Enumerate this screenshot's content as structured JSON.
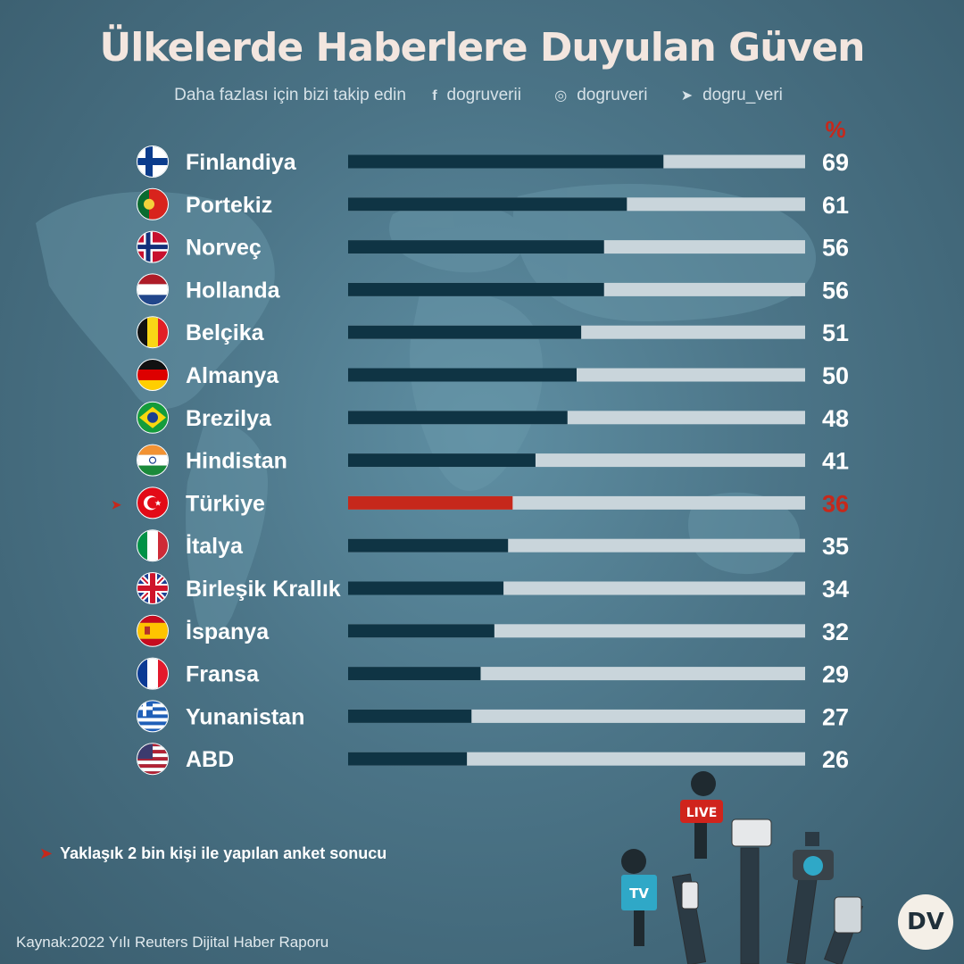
{
  "header": {
    "title": "Ülkelerde Haberlere Duyulan Güven",
    "follow_text": "Daha fazlası için bizi takip edin",
    "social": [
      {
        "icon": "facebook-icon",
        "glyph": "f",
        "handle": "dogruverii"
      },
      {
        "icon": "instagram-icon",
        "glyph": "◎",
        "handle": "dogruveri"
      },
      {
        "icon": "twitter-icon",
        "glyph": "➤",
        "handle": "dogru_veri"
      }
    ]
  },
  "chart_data": {
    "type": "bar",
    "orientation": "horizontal",
    "unit_label": "%",
    "categories": [
      "Finlandiya",
      "Portekiz",
      "Norveç",
      "Hollanda",
      "Belçika",
      "Almanya",
      "Brezilya",
      "Hindistan",
      "Türkiye",
      "İtalya",
      "Birleşik Krallık",
      "İspanya",
      "Fransa",
      "Yunanistan",
      "ABD"
    ],
    "values": [
      69,
      61,
      56,
      56,
      51,
      50,
      48,
      41,
      36,
      35,
      34,
      32,
      29,
      27,
      26
    ],
    "xlim": [
      0,
      100
    ],
    "highlight": "Türkiye",
    "colors": {
      "bar": "#0f3444",
      "track": "#c9d5db",
      "highlight": "#c6281b",
      "label": "#ffffff"
    },
    "flags": [
      "flag-finland-icon",
      "flag-portugal-icon",
      "flag-norway-icon",
      "flag-netherlands-icon",
      "flag-belgium-icon",
      "flag-germany-icon",
      "flag-brazil-icon",
      "flag-india-icon",
      "flag-turkey-icon",
      "flag-italy-icon",
      "flag-uk-icon",
      "flag-spain-icon",
      "flag-france-icon",
      "flag-greece-icon",
      "flag-usa-icon"
    ]
  },
  "footnote": {
    "marker": "➤",
    "text": "Yaklaşık 2 bin kişi ile yapılan anket sonucu"
  },
  "source": "Kaynak:2022 Yılı Reuters Dijital Haber Raporu",
  "logo": "DV",
  "illustration": {
    "mic_tags": [
      "LIVE",
      "TV"
    ]
  }
}
